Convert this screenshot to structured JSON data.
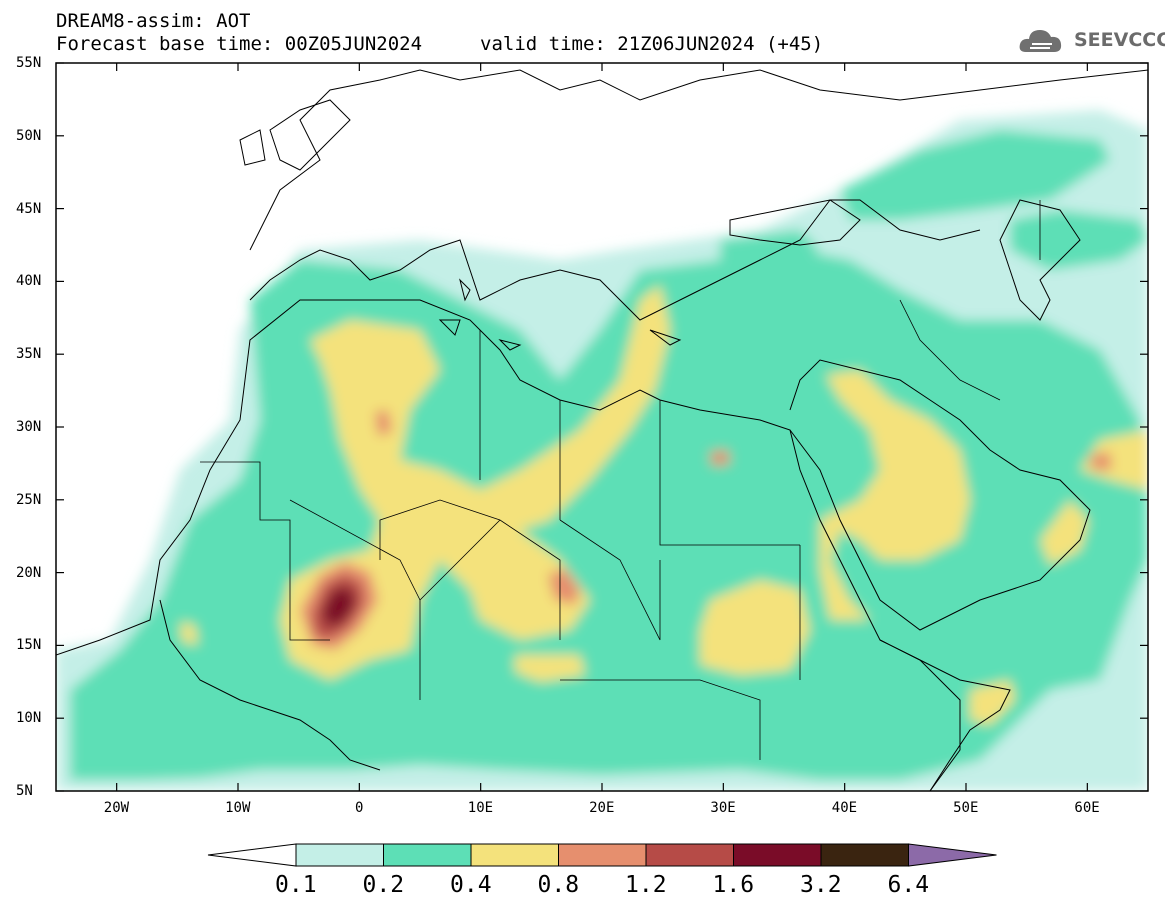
{
  "header": {
    "title": "DREAM8-assim: AOT",
    "base_time": "Forecast base time: 00Z05JUN2024",
    "valid_time": "valid time: 21Z06JUN2024 (+45)"
  },
  "logo": {
    "text": "SEEVCCC",
    "icon": "cloud-icon"
  },
  "map": {
    "lon_range": [
      -25,
      65
    ],
    "lat_range": [
      5,
      55
    ],
    "y_ticks": [
      "55N",
      "50N",
      "45N",
      "40N",
      "35N",
      "30N",
      "25N",
      "20N",
      "15N",
      "10N",
      "5N"
    ],
    "x_ticks": [
      "20W",
      "10W",
      "0",
      "10E",
      "20E",
      "30E",
      "40E",
      "50E",
      "60E"
    ]
  },
  "colorbar": {
    "labels": [
      "0.1",
      "0.2",
      "0.4",
      "0.8",
      "1.2",
      "1.6",
      "3.2",
      "6.4"
    ],
    "colors": [
      "#ffffff",
      "#c4efe7",
      "#5ddfb6",
      "#f4e27c",
      "#e68f6e",
      "#b64b47",
      "#7a0c28",
      "#3a2410",
      "#8c6aa8"
    ]
  }
}
